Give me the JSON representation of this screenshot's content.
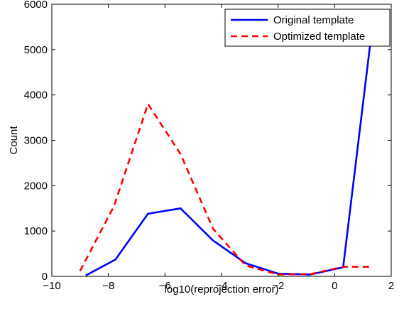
{
  "chart_data": {
    "type": "line",
    "xlabel": "log10(reprojection error)",
    "ylabel": "Count",
    "xlim": [
      -10,
      2
    ],
    "ylim": [
      0,
      6000
    ],
    "xticks": [
      -10,
      -8,
      -6,
      -4,
      -2,
      0,
      2
    ],
    "xtick_labels": [
      "−10",
      "−8",
      "−6",
      "−4",
      "−2",
      "0",
      "2"
    ],
    "yticks": [
      0,
      1000,
      2000,
      3000,
      4000,
      5000,
      6000
    ],
    "ytick_labels": [
      "0",
      "1000",
      "2000",
      "3000",
      "4000",
      "5000",
      "6000"
    ],
    "grid": false,
    "legend_position": "top-right",
    "series": [
      {
        "name": "Original template",
        "color": "#0000ff",
        "dash": "solid",
        "x": [
          -8.8,
          -7.75,
          -6.6,
          -5.45,
          -4.3,
          -3.15,
          -2.0,
          -0.85,
          0.3,
          1.35
        ],
        "y": [
          20,
          370,
          1380,
          1500,
          790,
          290,
          60,
          40,
          200,
          5600
        ]
      },
      {
        "name": "Optimized template",
        "color": "#ff0000",
        "dash": "dashed",
        "x": [
          -9.0,
          -7.8,
          -6.6,
          -5.45,
          -4.3,
          -3.15,
          -2.0,
          -0.85,
          0.3,
          1.35
        ],
        "y": [
          120,
          1550,
          3800,
          2700,
          1050,
          240,
          40,
          50,
          210,
          210
        ]
      }
    ]
  }
}
